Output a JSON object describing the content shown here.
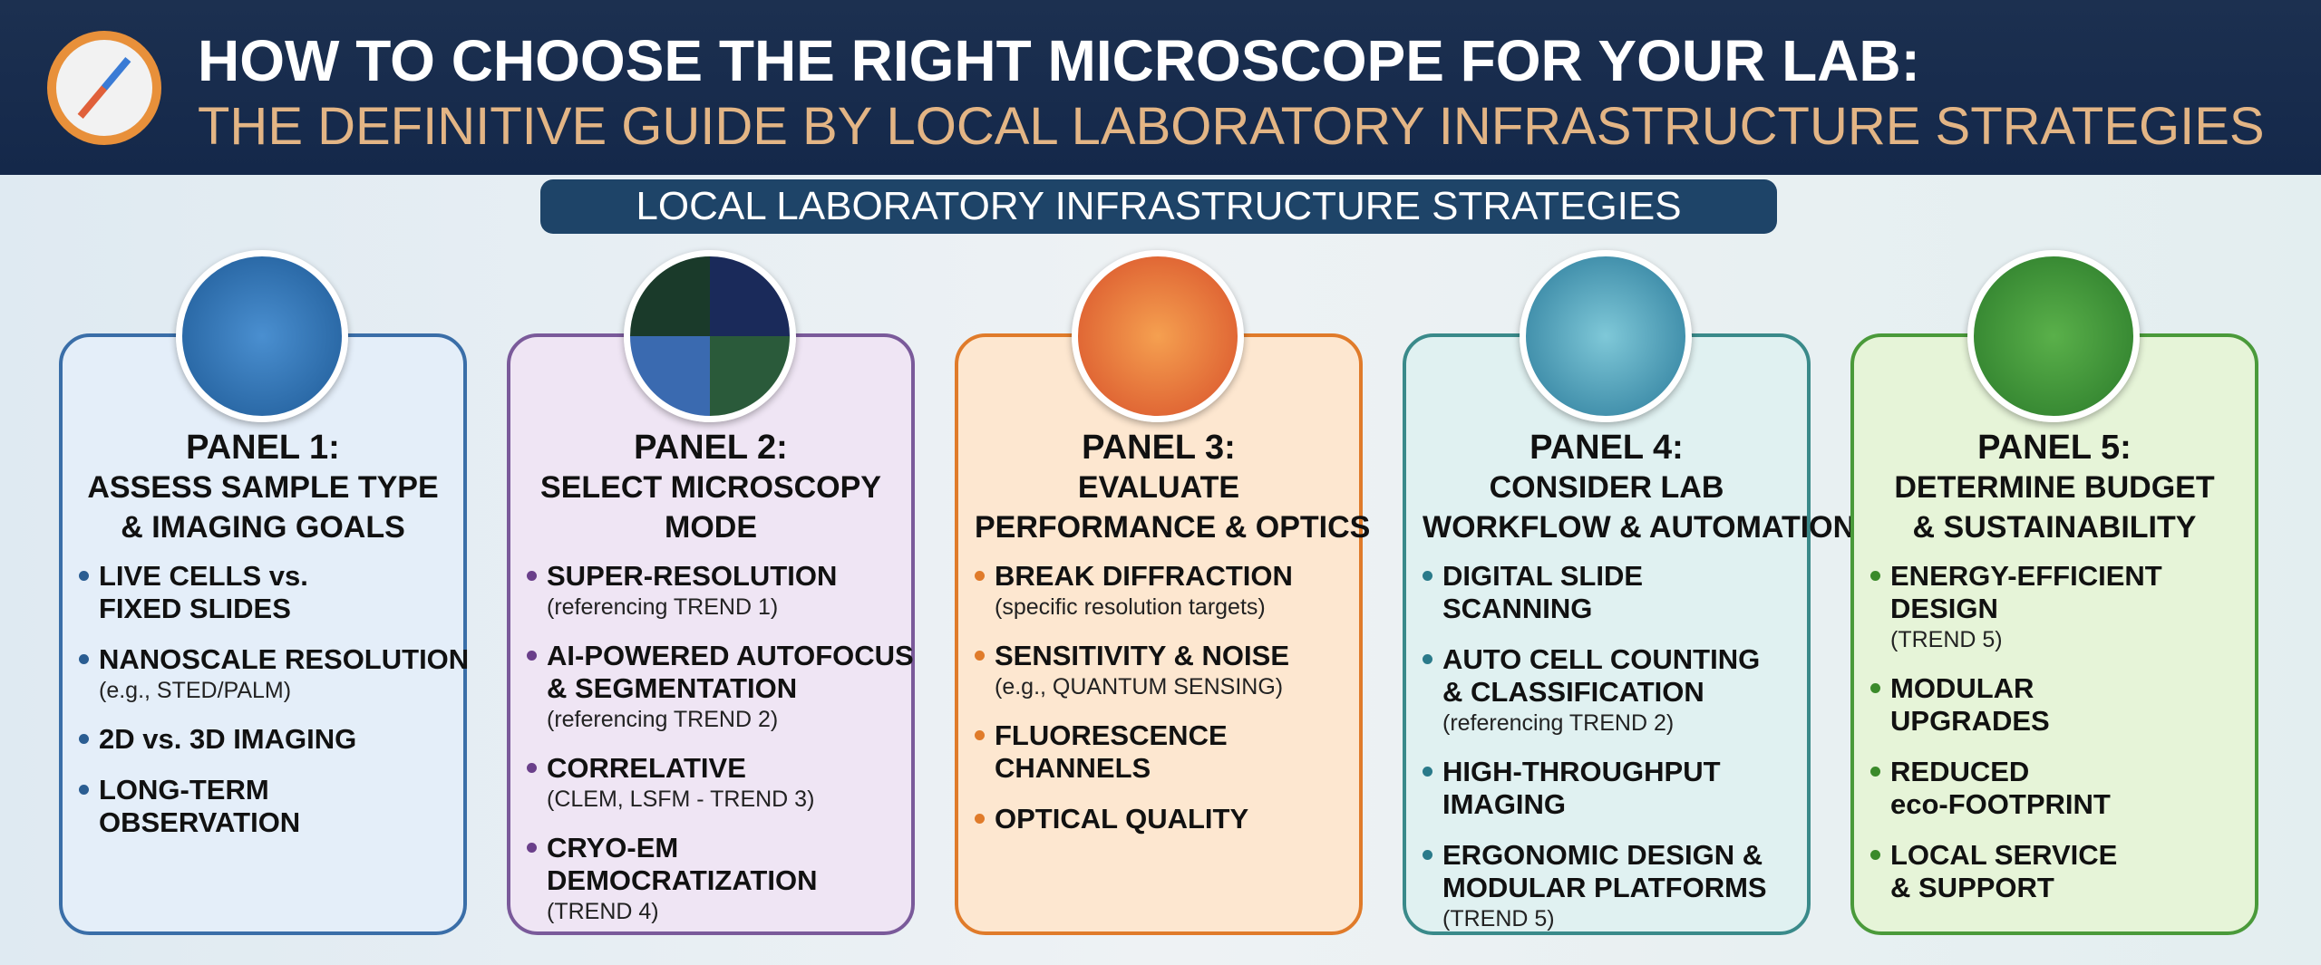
{
  "header": {
    "title": "HOW TO CHOOSE THE RIGHT MICROSCOPE FOR YOUR LAB:",
    "subtitle": "THE DEFINITIVE GUIDE BY LOCAL LABORATORY INFRASTRUCTURE STRATEGIES"
  },
  "banner": "LOCAL LABORATORY INFRASTRUCTURE STRATEGIES",
  "panels": [
    {
      "label": "PANEL 1:",
      "title": [
        "ASSESS SAMPLE TYPE",
        "& IMAGING GOALS"
      ],
      "items": [
        {
          "lines": [
            "LIVE CELLS vs.",
            "FIXED SLIDES"
          ]
        },
        {
          "lines": [
            "NANOSCALE RESOLUTION"
          ],
          "note": "(e.g., STED/PALM)"
        },
        {
          "lines": [
            "2D vs. 3D IMAGING"
          ]
        },
        {
          "lines": [
            "LONG-TERM",
            "OBSERVATION"
          ]
        }
      ]
    },
    {
      "label": "PANEL 2:",
      "title": [
        "SELECT MICROSCOPY",
        "MODE"
      ],
      "items": [
        {
          "lines": [
            "SUPER-RESOLUTION"
          ],
          "note": "(referencing TREND 1)"
        },
        {
          "lines": [
            "AI-POWERED AUTOFOCUS",
            "& SEGMENTATION"
          ],
          "note": "(referencing TREND 2)"
        },
        {
          "lines": [
            "CORRELATIVE"
          ],
          "note": "(CLEM, LSFM - TREND 3)"
        },
        {
          "lines": [
            "CRYO-EM",
            "DEMOCRATIZATION"
          ],
          "note": "(TREND 4)"
        }
      ]
    },
    {
      "label": "PANEL 3:",
      "title": [
        "EVALUATE",
        "PERFORMANCE & OPTICS"
      ],
      "items": [
        {
          "lines": [
            "BREAK DIFFRACTION"
          ],
          "note": "(specific resolution targets)"
        },
        {
          "lines": [
            "SENSITIVITY & NOISE"
          ],
          "note": "(e.g., QUANTUM SENSING)"
        },
        {
          "lines": [
            "FLUORESCENCE",
            "CHANNELS"
          ]
        },
        {
          "lines": [
            "OPTICAL QUALITY"
          ]
        }
      ]
    },
    {
      "label": "PANEL 4:",
      "title": [
        "CONSIDER LAB",
        "WORKFLOW & AUTOMATION"
      ],
      "items": [
        {
          "lines": [
            "DIGITAL SLIDE",
            "SCANNING"
          ]
        },
        {
          "lines": [
            "AUTO CELL COUNTING",
            "& CLASSIFICATION"
          ],
          "note": "(referencing TREND 2)"
        },
        {
          "lines": [
            "HIGH-THROUGHPUT",
            "IMAGING"
          ]
        },
        {
          "lines": [
            "ERGONOMIC DESIGN &",
            "MODULAR PLATFORMS"
          ],
          "note": "(TREND 5)"
        }
      ]
    },
    {
      "label": "PANEL 5:",
      "title": [
        "DETERMINE BUDGET",
        "& SUSTAINABILITY"
      ],
      "items": [
        {
          "lines": [
            "ENERGY-EFFICIENT",
            "DESIGN"
          ],
          "note": "(TREND 5)"
        },
        {
          "lines": [
            "MODULAR",
            "UPGRADES"
          ]
        },
        {
          "lines": [
            "REDUCED",
            "eco-FOOTPRINT"
          ]
        },
        {
          "lines": [
            "LOCAL SERVICE",
            "& SUPPORT"
          ]
        }
      ]
    }
  ]
}
